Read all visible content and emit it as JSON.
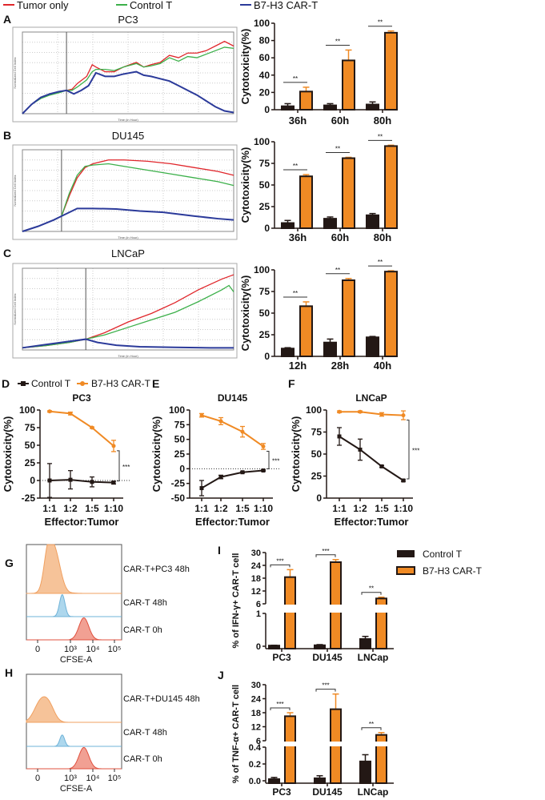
{
  "legend_top": {
    "items": [
      {
        "label": "Tumor only",
        "color": "#e0262b"
      },
      {
        "label": "Control T",
        "color": "#3cb04a"
      },
      {
        "label": "B7-H3 CAR-T",
        "color": "#2b3a9a"
      }
    ]
  },
  "legend_def": {
    "items": [
      {
        "label": "Control T",
        "color": "#231815",
        "marker": "square"
      },
      {
        "label": "B7-H3 CAR-T",
        "color": "#f08a24",
        "marker": "circle"
      }
    ]
  },
  "legend_ij": {
    "items": [
      {
        "label": "Control T",
        "color": "#231815"
      },
      {
        "label": "B7-H3 CAR-T",
        "color": "#f08a24"
      }
    ]
  },
  "chart_data": [
    {
      "panel": "A",
      "type": "line",
      "title": "PC3",
      "xlabel": "Time (in Hour)",
      "ylabel": "Normalized Cell Index",
      "xlim": [
        0,
        115
      ],
      "ylim": [
        0,
        3.5
      ],
      "grid": true,
      "marker_time": 24,
      "series": [
        {
          "name": "Tumor only",
          "x": [
            0,
            5,
            10,
            15,
            20,
            24,
            27,
            30,
            35,
            38,
            40,
            45,
            50,
            55,
            62,
            66,
            70,
            75,
            80,
            85,
            90,
            95,
            100,
            105,
            110,
            115
          ],
          "y": [
            0,
            0.4,
            0.7,
            0.85,
            0.95,
            1.0,
            1.05,
            1.3,
            1.6,
            2.1,
            2.0,
            1.8,
            1.8,
            2.0,
            2.2,
            2.0,
            2.1,
            2.2,
            2.5,
            2.4,
            2.6,
            2.6,
            2.7,
            2.9,
            3.1,
            2.9
          ]
        },
        {
          "name": "Control T",
          "x": [
            0,
            5,
            10,
            15,
            20,
            24,
            27,
            30,
            35,
            38,
            40,
            45,
            50,
            55,
            62,
            66,
            70,
            75,
            80,
            85,
            90,
            95,
            100,
            105,
            110,
            115
          ],
          "y": [
            0,
            0.4,
            0.65,
            0.8,
            0.9,
            1.0,
            1.0,
            1.15,
            1.45,
            1.8,
            1.9,
            1.9,
            1.85,
            2.0,
            2.15,
            2.0,
            2.05,
            2.15,
            2.4,
            2.25,
            2.45,
            2.4,
            2.55,
            2.7,
            2.85,
            2.8
          ]
        },
        {
          "name": "B7-H3 CAR-T",
          "x": [
            0,
            5,
            10,
            15,
            20,
            24,
            28,
            32,
            36,
            40,
            45,
            50,
            55,
            62,
            66,
            70,
            75,
            80,
            85,
            90,
            95,
            100,
            105,
            110,
            115
          ],
          "y": [
            0,
            0.4,
            0.7,
            0.85,
            0.95,
            1.0,
            0.85,
            1.0,
            1.2,
            1.75,
            1.6,
            1.6,
            1.7,
            1.8,
            1.65,
            1.6,
            1.5,
            1.4,
            1.2,
            1.0,
            0.8,
            0.55,
            0.3,
            0.12,
            0.05
          ]
        }
      ]
    },
    {
      "panel": "A",
      "type": "bar",
      "title": "",
      "ylabel": "Cytotoxicity(%)",
      "categories": [
        "36h",
        "60h",
        "80h"
      ],
      "ylim": [
        0,
        100
      ],
      "yticks": [
        0,
        20,
        40,
        60,
        80,
        100
      ],
      "series": [
        {
          "name": "Control T",
          "values": [
            4,
            5,
            6
          ],
          "errors": [
            3,
            2,
            3
          ]
        },
        {
          "name": "B7-H3 CAR-T",
          "values": [
            21,
            57,
            89
          ],
          "errors": [
            5,
            12,
            2
          ]
        }
      ],
      "significance": [
        "**",
        "**",
        "**"
      ]
    },
    {
      "panel": "B",
      "type": "line",
      "title": "DU145",
      "xlabel": "Time (in Hour)",
      "ylabel": "Normalized Cell Index",
      "xlim": [
        0,
        135
      ],
      "ylim": [
        0,
        3.2
      ],
      "grid": true,
      "marker_time": 25,
      "series": [
        {
          "name": "Tumor only",
          "x": [
            0,
            10,
            20,
            25,
            30,
            35,
            40,
            45,
            55,
            65,
            80,
            95,
            110,
            125,
            135
          ],
          "y": [
            0,
            0.2,
            0.45,
            0.6,
            1.4,
            2.1,
            2.5,
            2.65,
            2.8,
            2.8,
            2.75,
            2.65,
            2.5,
            2.35,
            2.2
          ]
        },
        {
          "name": "Control T",
          "x": [
            0,
            10,
            20,
            25,
            30,
            35,
            40,
            45,
            55,
            65,
            80,
            95,
            110,
            125,
            135
          ],
          "y": [
            0,
            0.2,
            0.45,
            0.6,
            1.5,
            2.2,
            2.55,
            2.6,
            2.65,
            2.55,
            2.4,
            2.25,
            2.1,
            1.95,
            1.8
          ]
        },
        {
          "name": "B7-H3 CAR-T",
          "x": [
            0,
            10,
            20,
            25,
            30,
            35,
            45,
            60,
            75,
            90,
            110,
            125,
            135
          ],
          "y": [
            0,
            0.2,
            0.45,
            0.6,
            0.75,
            0.9,
            0.9,
            0.88,
            0.8,
            0.75,
            0.6,
            0.5,
            0.45
          ]
        }
      ]
    },
    {
      "panel": "B",
      "type": "bar",
      "title": "",
      "ylabel": "Cytotoxicity(%)",
      "categories": [
        "36h",
        "60h",
        "80h"
      ],
      "ylim": [
        0,
        100
      ],
      "yticks": [
        0,
        25,
        50,
        75,
        100
      ],
      "series": [
        {
          "name": "Control T",
          "values": [
            6,
            11,
            15
          ],
          "errors": [
            3,
            2,
            2
          ]
        },
        {
          "name": "B7-H3 CAR-T",
          "values": [
            60,
            81,
            95
          ],
          "errors": [
            2,
            1,
            1
          ]
        }
      ],
      "significance": [
        "**",
        "**",
        "**"
      ]
    },
    {
      "panel": "C",
      "type": "line",
      "title": "LNCaP",
      "xlabel": "Time (in Hour)",
      "ylabel": "Normalized Cell Index",
      "xlim": [
        0,
        90
      ],
      "ylim": [
        0,
        3.8
      ],
      "grid": true,
      "marker_time": 27,
      "series": [
        {
          "name": "Tumor only",
          "x": [
            0,
            10,
            20,
            27,
            35,
            45,
            55,
            65,
            75,
            85,
            90
          ],
          "y": [
            0.1,
            0.2,
            0.35,
            0.5,
            0.8,
            1.3,
            1.7,
            2.2,
            2.8,
            3.3,
            3.5
          ]
        },
        {
          "name": "Control T",
          "x": [
            0,
            10,
            20,
            27,
            35,
            45,
            55,
            65,
            75,
            85,
            88,
            90
          ],
          "y": [
            0.1,
            0.2,
            0.35,
            0.5,
            0.7,
            1.05,
            1.4,
            1.75,
            2.25,
            2.8,
            3.0,
            2.7
          ]
        },
        {
          "name": "B7-H3 CAR-T",
          "x": [
            0,
            10,
            20,
            27,
            32,
            40,
            50,
            65,
            80,
            90
          ],
          "y": [
            0.1,
            0.25,
            0.4,
            0.5,
            0.35,
            0.22,
            0.15,
            0.12,
            0.1,
            0.1
          ]
        }
      ]
    },
    {
      "panel": "C",
      "type": "bar",
      "title": "",
      "ylabel": "Cytotoxicity(%)",
      "categories": [
        "12h",
        "28h",
        "40h"
      ],
      "ylim": [
        0,
        100
      ],
      "yticks": [
        0,
        25,
        50,
        75,
        100
      ],
      "series": [
        {
          "name": "Control T",
          "values": [
            9,
            16,
            22
          ],
          "errors": [
            1,
            4,
            1
          ]
        },
        {
          "name": "B7-H3 CAR-T",
          "values": [
            58,
            88,
            98
          ],
          "errors": [
            5,
            2,
            1
          ]
        }
      ],
      "significance": [
        "**",
        "**",
        "**"
      ]
    },
    {
      "panel": "D",
      "type": "line",
      "title": "PC3",
      "xlabel": "Effector:Tumor",
      "ylabel": "Cytotoxicity(%)",
      "categories": [
        "1:1",
        "1:2",
        "1:5",
        "1:10"
      ],
      "ylim": [
        -25,
        100
      ],
      "yticks": [
        -25,
        0,
        25,
        50,
        75,
        100
      ],
      "series": [
        {
          "name": "Control T",
          "values": [
            0,
            1,
            -2,
            -3
          ],
          "errors": [
            24,
            13,
            7,
            2
          ]
        },
        {
          "name": "B7-H3 CAR-T",
          "values": [
            98,
            95,
            75,
            49
          ],
          "errors": [
            1,
            2,
            1,
            8
          ]
        }
      ],
      "significance": "***"
    },
    {
      "panel": "E",
      "type": "line",
      "title": "DU145",
      "xlabel": "Effector:Tumor",
      "ylabel": "Cytotoxicity(%)",
      "categories": [
        "1:1",
        "1:2",
        "1:5",
        "1:10"
      ],
      "ylim": [
        -50,
        100
      ],
      "yticks": [
        -50,
        -25,
        0,
        25,
        50,
        75,
        100
      ],
      "series": [
        {
          "name": "Control T",
          "values": [
            -33,
            -14,
            -6,
            -3
          ],
          "errors": [
            13,
            3,
            1,
            1
          ]
        },
        {
          "name": "B7-H3 CAR-T",
          "values": [
            91,
            81,
            63,
            38
          ],
          "errors": [
            3,
            6,
            9,
            5
          ]
        }
      ],
      "significance": "***"
    },
    {
      "panel": "F",
      "type": "line",
      "title": "LNCaP",
      "xlabel": "Effector:Tumor",
      "ylabel": "Cytotoxicity(%)",
      "categories": [
        "1:1",
        "1:2",
        "1:5",
        "1:10"
      ],
      "ylim": [
        0,
        100
      ],
      "yticks": [
        0,
        25,
        50,
        75,
        100
      ],
      "series": [
        {
          "name": "Control T",
          "values": [
            70,
            55,
            36,
            20
          ],
          "errors": [
            10,
            12,
            1,
            1
          ]
        },
        {
          "name": "B7-H3 CAR-T",
          "values": [
            98,
            98,
            95,
            94
          ],
          "errors": [
            1,
            1,
            2,
            5
          ]
        }
      ],
      "significance": "***"
    },
    {
      "panel": "G",
      "type": "histogram",
      "xlabel": "CFSE-A",
      "xticks": [
        "0",
        "10³",
        "10⁴",
        "10⁵"
      ],
      "tracks": [
        {
          "label": "CAR-T+PC3 48h",
          "color": "#f5b987",
          "line": "#f0a060",
          "peak": 1.5,
          "spread": 0.55,
          "height": 0.95
        },
        {
          "label": "CAR-T  48h",
          "color": "#9fd0ea",
          "line": "#6fb3d8",
          "peak": 2.25,
          "spread": 0.25,
          "height": 1.0
        },
        {
          "label": "CAR-T  0h",
          "color": "#ef8f80",
          "line": "#e0513f",
          "peak": 3.6,
          "spread": 0.22,
          "height": 1.0
        }
      ]
    },
    {
      "panel": "H",
      "type": "histogram",
      "xlabel": "CFSE-A",
      "xticks": [
        "0",
        "10³",
        "10⁴",
        "10⁵"
      ],
      "tracks": [
        {
          "label": "CAR-T+DU145 48h",
          "color": "#f5b987",
          "line": "#f0a060",
          "peak": 0.3,
          "spread": 0.6,
          "height": 0.45
        },
        {
          "label": "CAR-T  48h",
          "color": "#9fd0ea",
          "line": "#6fb3d8",
          "peak": 2.25,
          "spread": 0.22,
          "height": 0.5
        },
        {
          "label": "CAR-T  0h",
          "color": "#ef8f80",
          "line": "#e0513f",
          "peak": 3.6,
          "spread": 0.22,
          "height": 1.0
        }
      ]
    },
    {
      "panel": "I",
      "type": "bar",
      "ylabel": "% of IFN-γ+ CAR-T cell",
      "categories": [
        "PC3",
        "DU145",
        "LNCap"
      ],
      "ylim_lower": [
        0,
        1
      ],
      "yticks_lower": [
        0,
        1
      ],
      "ylim_upper": [
        6,
        30
      ],
      "yticks_upper": [
        6,
        12,
        18,
        24,
        30
      ],
      "series": [
        {
          "name": "Control T",
          "values": [
            0.02,
            0.03,
            0.22
          ],
          "errors": [
            0.01,
            0.02,
            0.08
          ]
        },
        {
          "name": "B7-H3 CAR-T",
          "values": [
            18.5,
            25.5,
            8.5
          ],
          "errors": [
            3.5,
            1.2,
            0.6
          ]
        }
      ],
      "significance": [
        "***",
        "***",
        "**"
      ]
    },
    {
      "panel": "J",
      "type": "bar",
      "ylabel": "% of TNF-α+ CAR-T cell",
      "categories": [
        "PC3",
        "DU145",
        "LNCap"
      ],
      "ylim_lower": [
        0,
        0.4
      ],
      "yticks_lower": [
        "0.0",
        "0.2",
        "0.4"
      ],
      "ylim_upper": [
        6,
        30
      ],
      "yticks_upper": [
        6,
        12,
        18,
        24,
        30
      ],
      "series": [
        {
          "name": "Control T",
          "values": [
            0.02,
            0.03,
            0.23
          ],
          "errors": [
            0.02,
            0.03,
            0.08
          ]
        },
        {
          "name": "B7-H3 CAR-T",
          "values": [
            16.5,
            19.5,
            8.5
          ],
          "errors": [
            1.5,
            6.5,
            1.0
          ]
        }
      ],
      "significance": [
        "***",
        "***",
        "**"
      ]
    }
  ]
}
